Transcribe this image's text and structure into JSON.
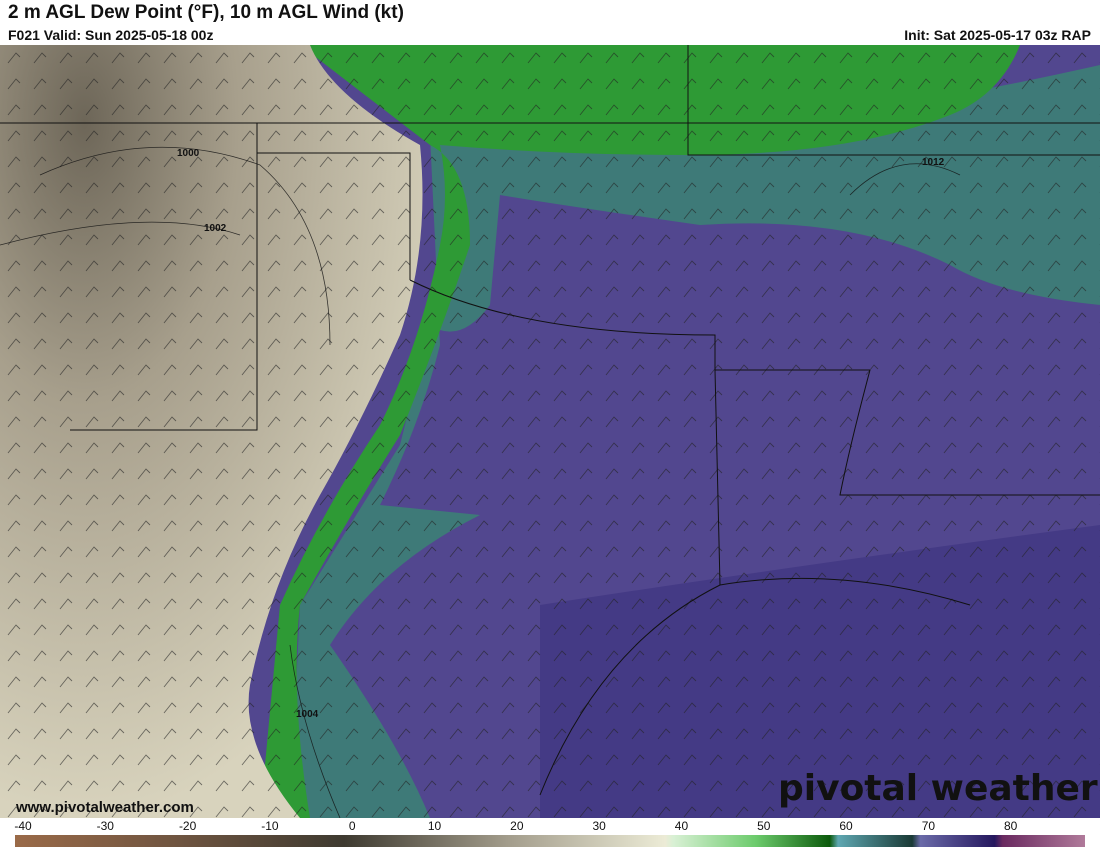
{
  "header": {
    "title": "2 m AGL Dew Point (°F), 10 m AGL Wind (kt)",
    "valid": "F021 Valid: Sun 2025-05-18 00z",
    "init": "Init: Sat 2025-05-17 03z RAP"
  },
  "map": {
    "isobar_labels": [
      "1000",
      "1002",
      "1004",
      "1012"
    ],
    "watermark_url": "www.pivotalweather.com",
    "logo": "pivotal weather",
    "colors": {
      "dry": "#aaa08c",
      "moist_green": "#2e9a35",
      "teal": "#3e7a78",
      "humid_purple": "#52478f"
    }
  },
  "colorbar": {
    "min": -40,
    "max": 90,
    "ticks": [
      "-40",
      "-30",
      "-20",
      "-10",
      "0",
      "10",
      "20",
      "30",
      "40",
      "50",
      "60",
      "70",
      "80"
    ],
    "stops": [
      {
        "v": -40,
        "c": "#9a6a48"
      },
      {
        "v": -20,
        "c": "#6e5440"
      },
      {
        "v": 0,
        "c": "#3e3a30"
      },
      {
        "v": 20,
        "c": "#a39d8c"
      },
      {
        "v": 39,
        "c": "#ecebd6"
      },
      {
        "v": 40,
        "c": "#d8f0d4"
      },
      {
        "v": 50,
        "c": "#6ccb6c"
      },
      {
        "v": 59,
        "c": "#0c5a0c"
      },
      {
        "v": 60,
        "c": "#5ea7b1"
      },
      {
        "v": 69,
        "c": "#1a3a36"
      },
      {
        "v": 70,
        "c": "#6a6aa8"
      },
      {
        "v": 79,
        "c": "#25185e"
      },
      {
        "v": 80,
        "c": "#6a2a60"
      },
      {
        "v": 90,
        "c": "#b07a9a"
      }
    ]
  }
}
